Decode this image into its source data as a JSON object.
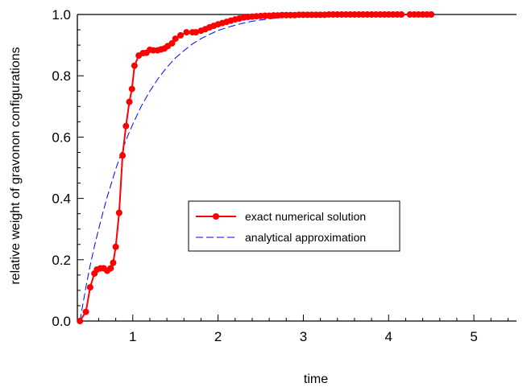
{
  "chart_data": {
    "type": "line",
    "title": "",
    "xlabel": "time",
    "ylabel": "relative weight of gravonon configurations",
    "xlim": [
      0.35,
      5.5
    ],
    "ylim": [
      0.0,
      1.0
    ],
    "xticks": [
      1,
      2,
      3,
      4,
      5
    ],
    "yticks": [
      0.0,
      0.2,
      0.4,
      0.6,
      0.8,
      1.0
    ],
    "x_tick_labels": [
      "1",
      "2",
      "3",
      "4",
      "5"
    ],
    "y_tick_labels": [
      "0.0",
      "0.2",
      "0.4",
      "0.6",
      "0.8",
      "1.0"
    ],
    "grid": false,
    "legend_position": "center-right",
    "series": [
      {
        "name": "exact numerical solution",
        "color": "#ff0000",
        "style": "solid-with-markers",
        "x": [
          0.38,
          0.45,
          0.5,
          0.55,
          0.58,
          0.62,
          0.66,
          0.7,
          0.74,
          0.77,
          0.8,
          0.84,
          0.88,
          0.92,
          0.96,
          0.99,
          1.02,
          1.07,
          1.12,
          1.16,
          1.2,
          1.24,
          1.29,
          1.33,
          1.37,
          1.41,
          1.46,
          1.5,
          1.56,
          1.63,
          1.7,
          1.74,
          1.8,
          1.85,
          1.9,
          1.95,
          2.0,
          2.05,
          2.1,
          2.15,
          2.2,
          2.25,
          2.3,
          2.35,
          2.4,
          2.45,
          2.5,
          2.55,
          2.6,
          2.65,
          2.7,
          2.75,
          2.8,
          2.85,
          2.9,
          2.95,
          3.0,
          3.05,
          3.1,
          3.15,
          3.2,
          3.25,
          3.3,
          3.35,
          3.4,
          3.45,
          3.5,
          3.55,
          3.6,
          3.65,
          3.7,
          3.75,
          3.8,
          3.85,
          3.9,
          3.95,
          4.0,
          4.05,
          4.1,
          4.15,
          4.25,
          4.3,
          4.35,
          4.4,
          4.45,
          4.5
        ],
        "y": [
          0.0,
          0.03,
          0.11,
          0.155,
          0.168,
          0.172,
          0.172,
          0.164,
          0.172,
          0.19,
          0.242,
          0.353,
          0.54,
          0.636,
          0.715,
          0.757,
          0.833,
          0.866,
          0.874,
          0.875,
          0.885,
          0.883,
          0.883,
          0.886,
          0.889,
          0.897,
          0.906,
          0.921,
          0.932,
          0.942,
          0.942,
          0.942,
          0.947,
          0.952,
          0.958,
          0.963,
          0.968,
          0.972,
          0.976,
          0.98,
          0.984,
          0.987,
          0.99,
          0.992,
          0.993,
          0.994,
          0.995,
          0.996,
          0.996,
          0.997,
          0.997,
          0.998,
          0.998,
          0.998,
          0.998,
          0.999,
          0.999,
          0.999,
          0.999,
          0.999,
          0.999,
          0.999,
          1.0,
          1.0,
          1.0,
          1.0,
          1.0,
          1.0,
          1.0,
          1.0,
          1.0,
          1.0,
          1.0,
          1.0,
          1.0,
          1.0,
          1.0,
          1.0,
          1.0,
          1.0,
          1.0,
          1.0,
          1.0,
          1.0,
          1.0,
          1.0
        ]
      },
      {
        "name": "analytical approximation",
        "color": "#0000ff",
        "style": "dashed",
        "x": [
          0.38,
          0.45,
          0.5,
          0.55,
          0.6,
          0.65,
          0.7,
          0.75,
          0.8,
          0.85,
          0.9,
          0.95,
          1.0,
          1.1,
          1.2,
          1.3,
          1.4,
          1.5,
          1.6,
          1.7,
          1.8,
          1.9,
          2.0,
          2.1,
          2.2,
          2.3,
          2.4,
          2.5,
          2.6,
          2.8,
          3.0
        ],
        "y": [
          0.0,
          0.11,
          0.181,
          0.243,
          0.3,
          0.354,
          0.405,
          0.45,
          0.496,
          0.536,
          0.575,
          0.61,
          0.642,
          0.701,
          0.75,
          0.792,
          0.828,
          0.858,
          0.882,
          0.904,
          0.921,
          0.935,
          0.948,
          0.957,
          0.965,
          0.972,
          0.978,
          0.982,
          0.986,
          0.992,
          0.996
        ]
      }
    ]
  }
}
